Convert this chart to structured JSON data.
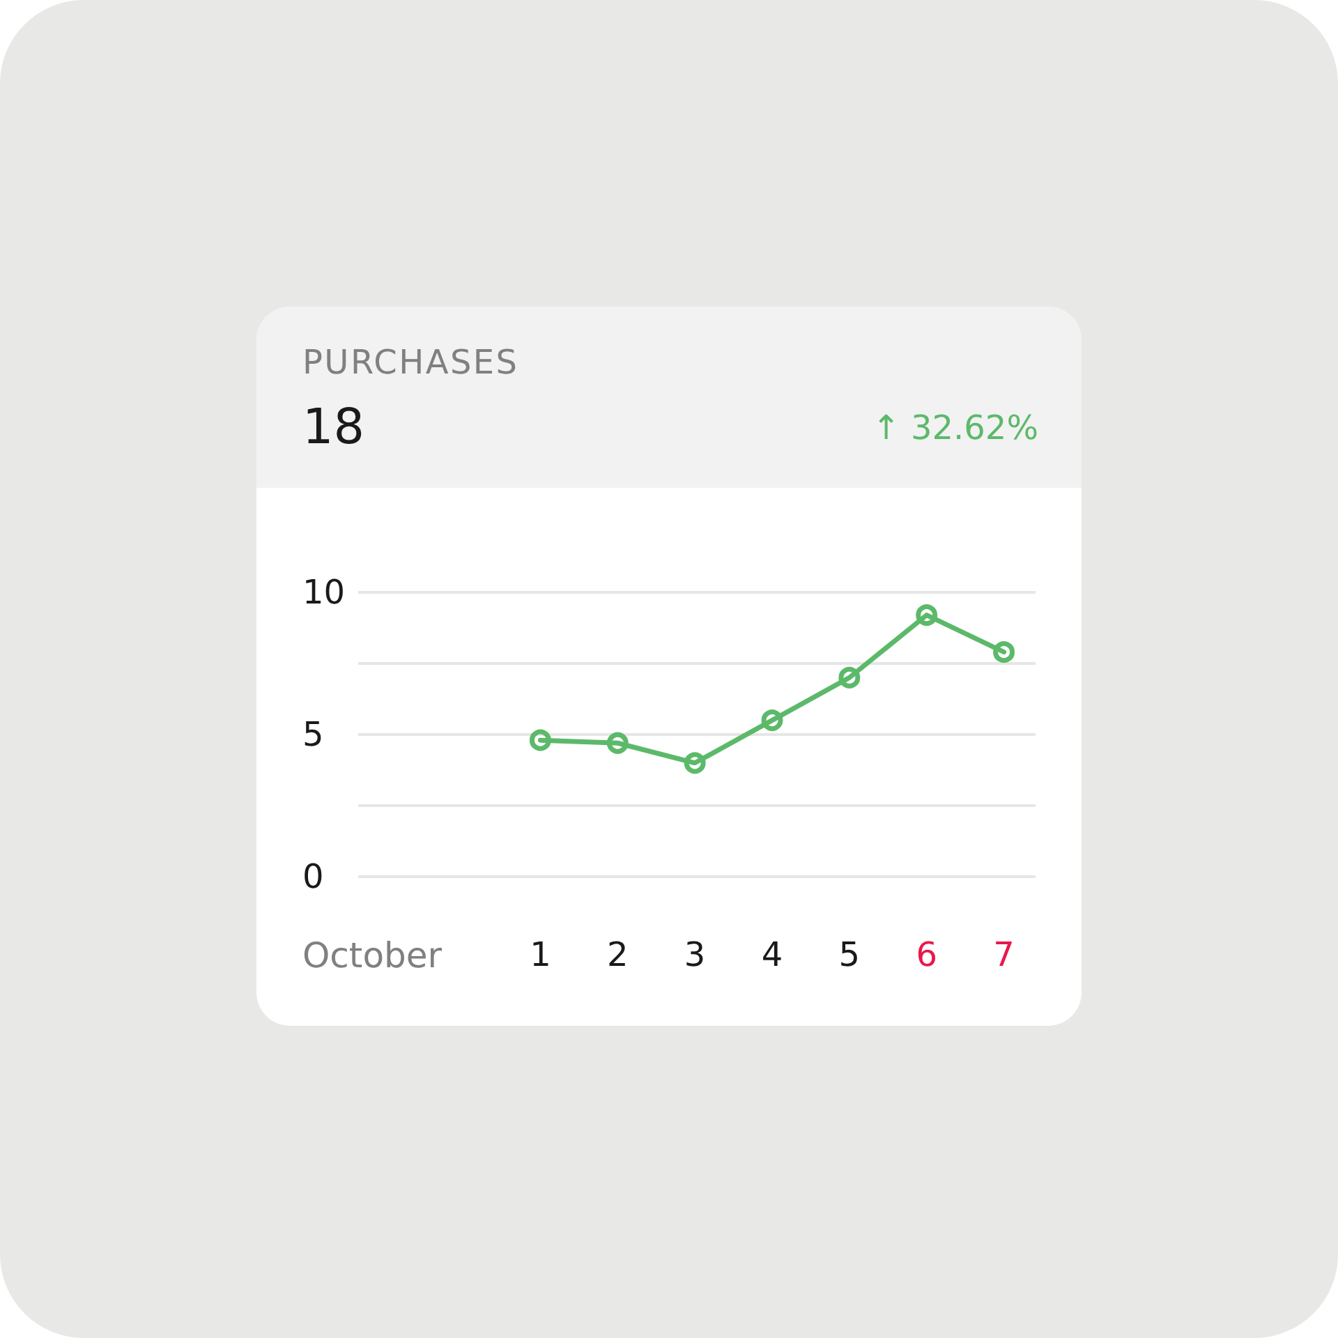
{
  "chart_data": {
    "type": "line",
    "title": "PURCHASES",
    "subtitle": "18",
    "annotations": [
      "↑ 32.62%"
    ],
    "xlabel": "October",
    "categories": [
      "1",
      "2",
      "3",
      "4",
      "5",
      "6",
      "7"
    ],
    "series": [
      {
        "color": "#5cb96a",
        "values": [
          4.8,
          4.7,
          4.0,
          5.5,
          7.0,
          9.2,
          7.9
        ]
      }
    ],
    "ylim": [
      0,
      10
    ],
    "yticks": [
      0,
      {
        "value": 2.5,
        "label": null
      },
      5,
      {
        "value": 7.5,
        "label": null
      },
      10
    ],
    "grid": "y",
    "marker": "circle",
    "line_style": "solid"
  }
}
